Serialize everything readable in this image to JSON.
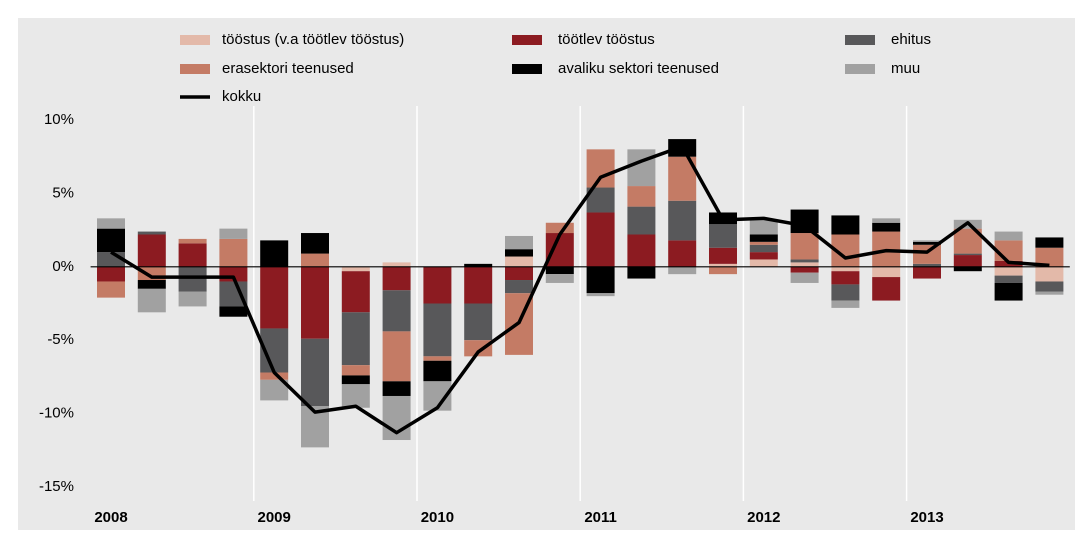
{
  "chart_data": {
    "type": "bar",
    "stacked": true,
    "categories": [
      "2008",
      null,
      null,
      null,
      "2009",
      null,
      null,
      null,
      "2010",
      null,
      null,
      null,
      "2011",
      null,
      null,
      null,
      "2012",
      null,
      null,
      null,
      "2013",
      null,
      null,
      null
    ],
    "series": [
      {
        "name": "tööstus (v.a töötlev tööstus)",
        "color": "#e3b9a9",
        "values": [
          0,
          0,
          0,
          0,
          0,
          0,
          -0.3,
          0.3,
          0,
          0,
          0.7,
          0,
          0,
          0,
          0,
          0.2,
          0.5,
          0.3,
          -0.3,
          -0.7,
          0,
          0,
          -0.6,
          -1.0
        ]
      },
      {
        "name": "töötlev tööstus",
        "color": "#8c1b21",
        "values": [
          -1.0,
          2.2,
          1.6,
          -1.0,
          -4.2,
          -4.9,
          -2.8,
          -1.6,
          -2.5,
          -2.5,
          -0.9,
          2.3,
          3.7,
          2.2,
          1.8,
          1.1,
          0.5,
          -0.4,
          -0.9,
          -1.6,
          -0.8,
          0.8,
          0.4,
          0
        ]
      },
      {
        "name": "ehitus",
        "color": "#58585a",
        "values": [
          1.0,
          0.2,
          -1.7,
          -1.7,
          -3.0,
          -4.6,
          -3.6,
          -2.8,
          -3.6,
          -2.5,
          -0.9,
          0,
          1.7,
          1.9,
          2.7,
          1.6,
          0.5,
          0.2,
          -1.1,
          0,
          0.2,
          0.1,
          -0.5,
          -0.7
        ]
      },
      {
        "name": "erasektori teenused",
        "color": "#c47b65",
        "values": [
          -1.1,
          -0.9,
          0.3,
          1.9,
          -0.5,
          0.9,
          -0.7,
          -3.4,
          -0.3,
          -1.1,
          -4.2,
          0.7,
          2.6,
          1.4,
          3.0,
          -0.5,
          0.2,
          1.8,
          2.2,
          2.4,
          1.3,
          1.7,
          1.4,
          1.3
        ]
      },
      {
        "name": "avaliku sektori teenused",
        "color": "#000000",
        "values": [
          1.6,
          -0.6,
          0,
          -0.7,
          1.8,
          1.4,
          -0.6,
          -1.0,
          -1.4,
          0.2,
          0.5,
          -0.5,
          -1.8,
          -0.8,
          1.2,
          0.8,
          0.5,
          1.6,
          1.3,
          0.6,
          0.2,
          -0.3,
          -1.2,
          0.7
        ]
      },
      {
        "name": "muu",
        "color": "#a1a1a1",
        "values": [
          0.7,
          -1.6,
          -1.0,
          0.7,
          -1.4,
          -2.8,
          -1.6,
          -3.0,
          -2.0,
          0,
          0.9,
          -0.6,
          -0.2,
          2.5,
          -0.5,
          0,
          1.0,
          -0.7,
          -0.5,
          0.3,
          0.1,
          0.6,
          0.6,
          -0.2
        ]
      },
      {
        "name": "kokku",
        "type": "line",
        "color": "#000000",
        "values": [
          1.0,
          -0.7,
          -0.7,
          -0.7,
          -7.2,
          -9.9,
          -9.5,
          -11.3,
          -9.6,
          -5.8,
          -3.8,
          2.2,
          6.1,
          7.2,
          8.2,
          3.2,
          3.3,
          2.8,
          0.6,
          1.1,
          1.0,
          3.0,
          0.3,
          0.1
        ]
      }
    ],
    "ylim": [
      -15,
      10
    ],
    "yticks": [
      {
        "value": -15,
        "label": "-15%"
      },
      {
        "value": -10,
        "label": "-10%"
      },
      {
        "value": -5,
        "label": "-5%"
      },
      {
        "value": 0,
        "label": "0%"
      },
      {
        "value": 5,
        "label": "5%"
      },
      {
        "value": 10,
        "label": "10%"
      }
    ],
    "grid": false
  }
}
